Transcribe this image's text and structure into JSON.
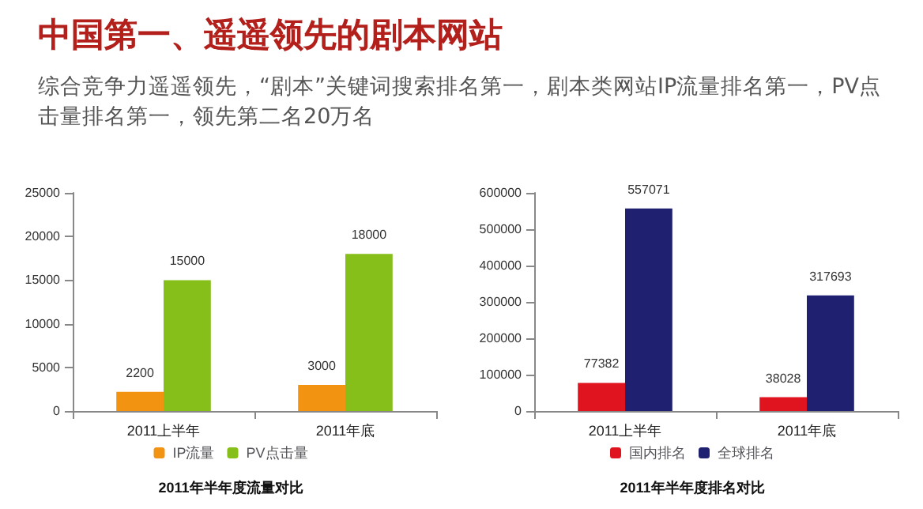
{
  "chart_data": [
    {
      "type": "other",
      "title": "中国第一、遥遥领先的剧本网站",
      "subtitle": "综合竞争力遥遥领先，“剧本”关键词搜索排名第一，剧本类网站IP流量排名第一，PV点击量排名第一，领先第二名20万名"
    },
    {
      "type": "bar",
      "title": "2011年半年度流量对比",
      "categories": [
        "2011上半年",
        "2011年底"
      ],
      "series": [
        {
          "name": "IP流量",
          "color": "#f29412",
          "values": [
            2200,
            3000
          ]
        },
        {
          "name": "PV点击量",
          "color": "#86bf1a",
          "values": [
            15000,
            18000
          ]
        }
      ],
      "ylim": [
        0,
        25000
      ],
      "yticks": [
        0,
        5000,
        10000,
        15000,
        20000,
        25000
      ],
      "data_labels": true,
      "legend": "bottom",
      "grid": false
    },
    {
      "type": "bar",
      "title": "2011年半年度排名对比",
      "categories": [
        "2011上半年",
        "2011年底"
      ],
      "series": [
        {
          "name": "国内排名",
          "color": "#e0141e",
          "values": [
            77382,
            38028
          ]
        },
        {
          "name": "全球排名",
          "color": "#1f2070",
          "values": [
            557071,
            317693
          ]
        }
      ],
      "ylim": [
        0,
        600000
      ],
      "yticks": [
        0,
        100000,
        200000,
        300000,
        400000,
        500000,
        600000
      ],
      "data_labels": true,
      "legend": "bottom",
      "grid": false
    }
  ]
}
